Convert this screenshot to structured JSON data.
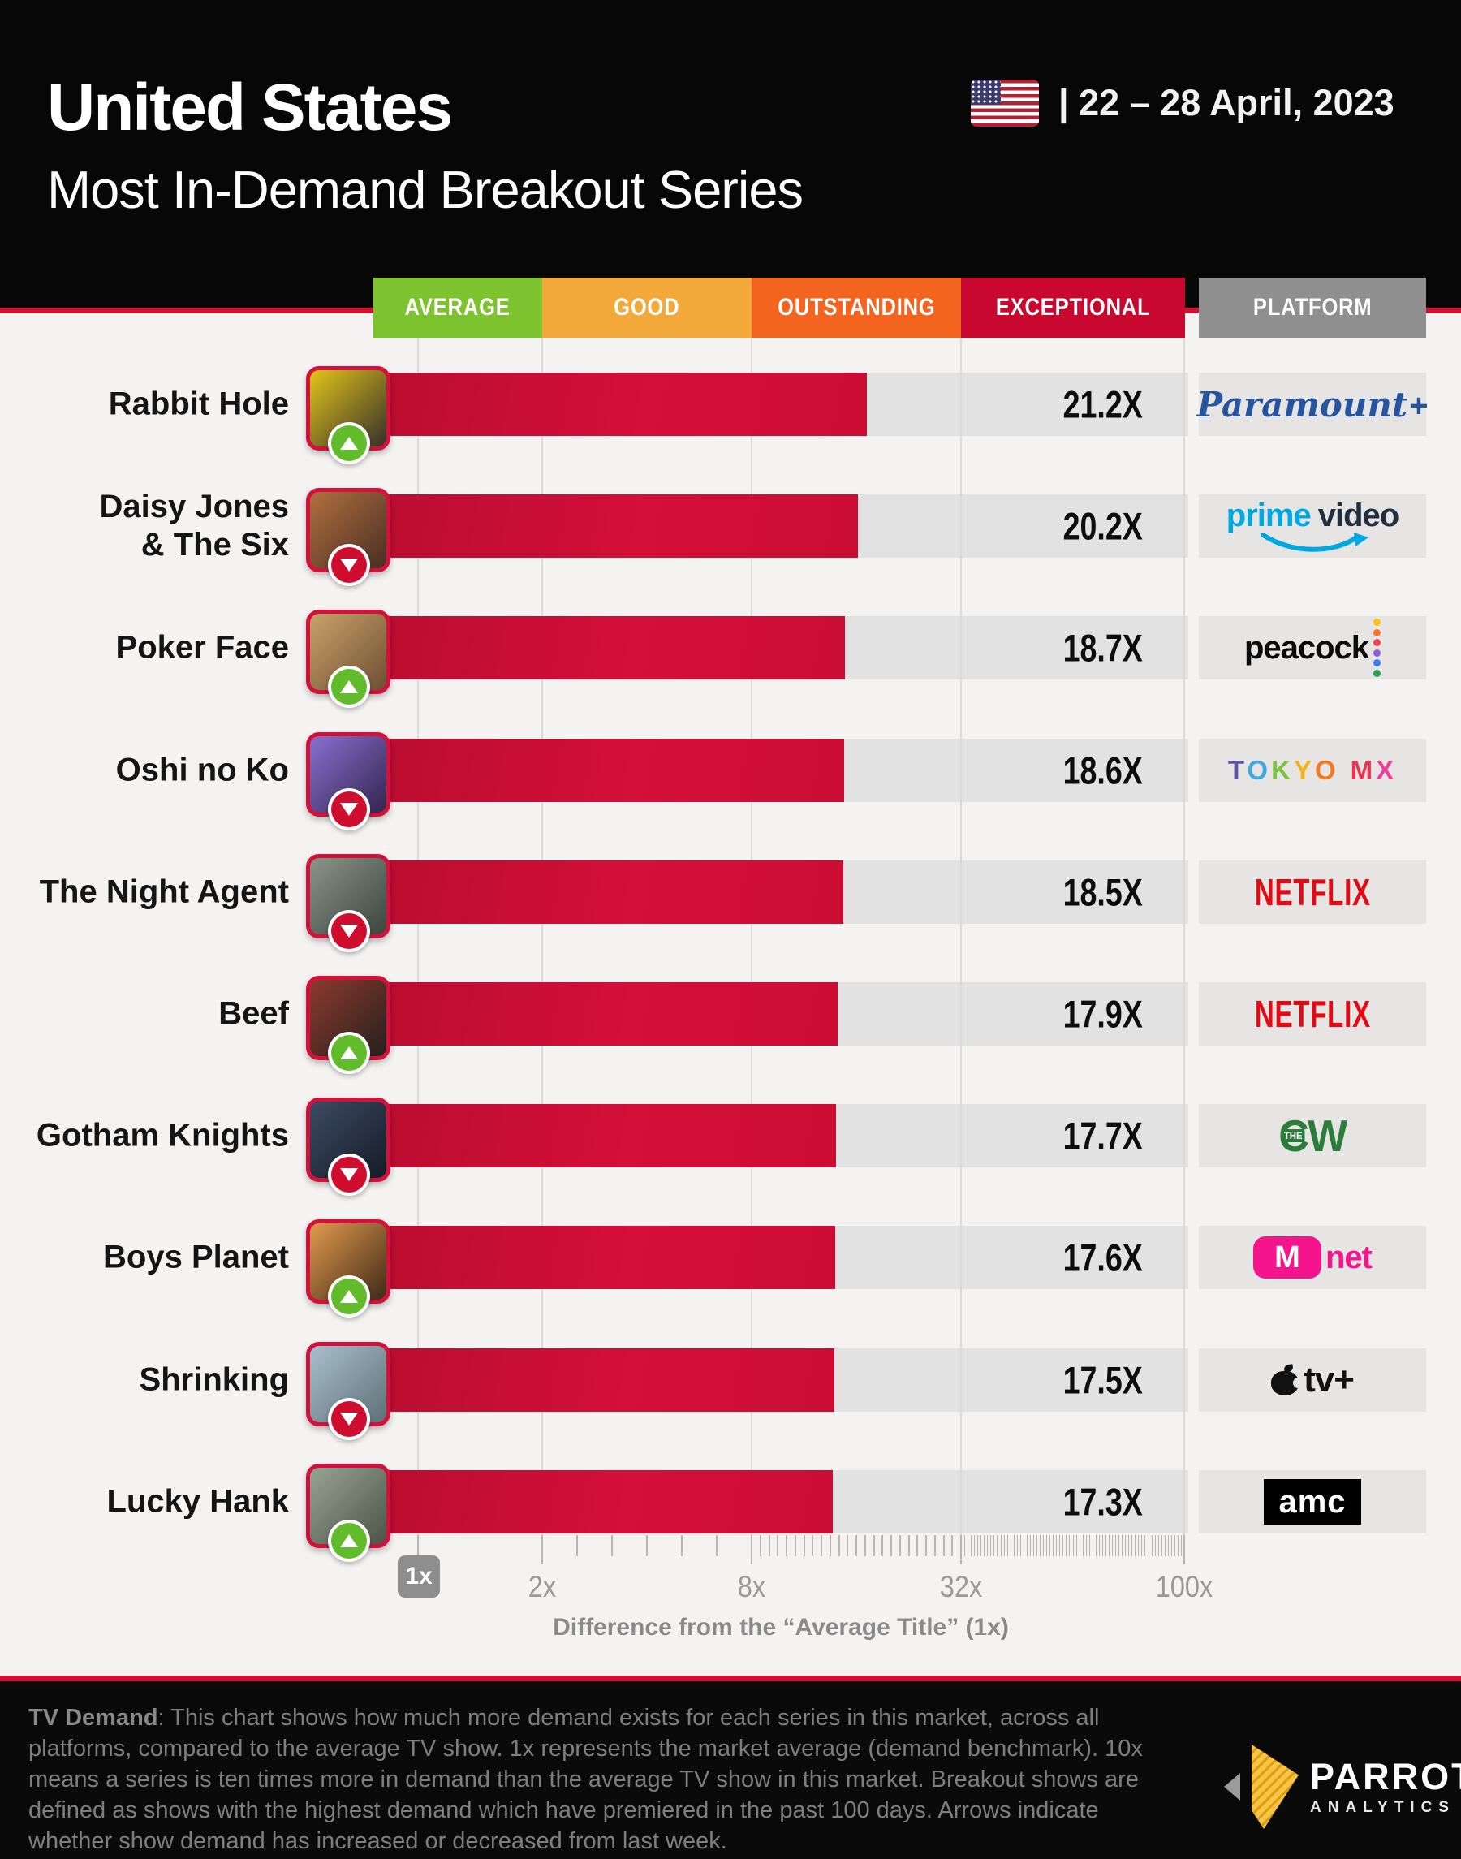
{
  "header": {
    "country": "United States",
    "title": "Most In-Demand Breakout Series",
    "date_range": "|  22 – 28 April, 2023",
    "flag": "us-flag"
  },
  "legend": {
    "bands": [
      {
        "label": "AVERAGE",
        "color": "#7dc22f"
      },
      {
        "label": "GOOD",
        "color": "#f3a83a"
      },
      {
        "label": "OUTSTANDING",
        "color": "#f3641f"
      },
      {
        "label": "EXCEPTIONAL",
        "color": "#c9082f"
      }
    ],
    "platform_header": {
      "label": "PLATFORM",
      "color": "#908f8f"
    }
  },
  "chart_data": {
    "type": "bar",
    "orientation": "horizontal",
    "title": "United States — Most In-Demand Breakout Series, 22–28 April 2023",
    "xlabel": "Difference from the “Average Title” (1x)",
    "categories": [
      "Rabbit Hole",
      "Daisy Jones & The Six",
      "Poker Face",
      "Oshi no Ko",
      "The Night Agent",
      "Beef",
      "Gotham Knights",
      "Boys Planet",
      "Shrinking",
      "Lucky Hank"
    ],
    "values": [
      21.2,
      20.2,
      18.7,
      18.6,
      18.5,
      17.9,
      17.7,
      17.6,
      17.5,
      17.3
    ],
    "value_labels": [
      "21.2X",
      "20.2X",
      "18.7X",
      "18.6X",
      "18.5X",
      "17.9X",
      "17.7X",
      "17.6X",
      "17.5X",
      "17.3X"
    ],
    "trends": [
      "up",
      "down",
      "up",
      "down",
      "down",
      "up",
      "down",
      "up",
      "down",
      "up"
    ],
    "platforms": [
      "Paramount+",
      "prime video",
      "peacock",
      "TOKYO MX",
      "NETFLIX",
      "NETFLIX",
      "The CW",
      "Mnet",
      "Apple TV+",
      "AMC"
    ],
    "axis": {
      "scale": "log-like piecewise",
      "ticks": [
        "1x",
        "2x",
        "8x",
        "32x",
        "100x"
      ],
      "anchor_values": [
        1,
        2,
        8,
        32,
        100
      ],
      "anchor_x": [
        515,
        668,
        926,
        1184,
        1459
      ],
      "caption": "Difference from the “Average Title” (1x)"
    },
    "rows": [
      {
        "rank": 1,
        "title": "Rabbit Hole",
        "value": 21.2,
        "value_label": "21.2X",
        "trend": "up",
        "platform": {
          "type": "paramount-plus",
          "name": "Paramount+",
          "parts": [
            "Paramount",
            "+"
          ]
        },
        "thumb": [
          "#e3c419",
          "#35302a"
        ]
      },
      {
        "rank": 2,
        "title": "Daisy Jones\n& The Six",
        "value": 20.2,
        "value_label": "20.2X",
        "trend": "down",
        "platform": {
          "type": "prime-video",
          "name": "prime video",
          "parts": [
            "prime",
            "video"
          ]
        },
        "thumb": [
          "#b0703f",
          "#4a2e24"
        ]
      },
      {
        "rank": 3,
        "title": "Poker Face",
        "value": 18.7,
        "value_label": "18.7X",
        "trend": "up",
        "platform": {
          "type": "peacock",
          "name": "peacock",
          "parts": [
            "peacock"
          ]
        },
        "thumb": [
          "#c9a269",
          "#6e4f33"
        ]
      },
      {
        "rank": 4,
        "title": "Oshi no Ko",
        "value": 18.6,
        "value_label": "18.6X",
        "trend": "down",
        "platform": {
          "type": "tokyo-mx",
          "name": "TOKYO MX",
          "parts": [
            "TOKYO",
            "MX"
          ]
        },
        "thumb": [
          "#8a6fd0",
          "#33254f"
        ]
      },
      {
        "rank": 5,
        "title": "The Night Agent",
        "value": 18.5,
        "value_label": "18.5X",
        "trend": "down",
        "platform": {
          "type": "netflix",
          "name": "NETFLIX",
          "parts": [
            "NETFLIX"
          ]
        },
        "thumb": [
          "#8b9488",
          "#3c463e"
        ]
      },
      {
        "rank": 6,
        "title": "Beef",
        "value": 17.9,
        "value_label": "17.9X",
        "trend": "up",
        "platform": {
          "type": "netflix",
          "name": "NETFLIX",
          "parts": [
            "NETFLIX"
          ]
        },
        "thumb": [
          "#8c3a2c",
          "#26201f"
        ]
      },
      {
        "rank": 7,
        "title": "Gotham Knights",
        "value": 17.7,
        "value_label": "17.7X",
        "trend": "down",
        "platform": {
          "type": "the-cw",
          "name": "The CW",
          "parts": [
            "THE",
            "CW"
          ]
        },
        "thumb": [
          "#3c4a63",
          "#161c28"
        ]
      },
      {
        "rank": 8,
        "title": "Boys Planet",
        "value": 17.6,
        "value_label": "17.6X",
        "trend": "up",
        "platform": {
          "type": "mnet",
          "name": "Mnet",
          "parts": [
            "M",
            "net"
          ]
        },
        "thumb": [
          "#e09a4d",
          "#3f2a17"
        ]
      },
      {
        "rank": 9,
        "title": "Shrinking",
        "value": 17.5,
        "value_label": "17.5X",
        "trend": "down",
        "platform": {
          "type": "apple-tv",
          "name": "Apple TV+",
          "parts": [
            "tv+"
          ]
        },
        "thumb": [
          "#a8c0cc",
          "#5f7077"
        ]
      },
      {
        "rank": 10,
        "title": "Lucky Hank",
        "value": 17.3,
        "value_label": "17.3X",
        "trend": "up",
        "platform": {
          "type": "amc",
          "name": "AMC",
          "parts": [
            "amc"
          ]
        },
        "thumb": [
          "#97a394",
          "#4c5547"
        ]
      }
    ],
    "logo_colors": {
      "paramount_blue": "#27549f",
      "prime_blue": "#00a8e1",
      "prime_dark": "#232f3e",
      "netflix_red": "#e50914",
      "cw_green": "#2d7d3a",
      "mnet_pink": "#f5148c",
      "peacock_dots": [
        "#fcc40f",
        "#ff7426",
        "#ef4256",
        "#8f5bd8",
        "#3d7bf5",
        "#27a554"
      ],
      "tokyo_letters": [
        "#5a51a5",
        "#3fa9e0",
        "#7dc242",
        "#f0b51d",
        "#f47a20",
        "#e8344e",
        "#ee3f96"
      ]
    },
    "bar_color": "#cc0d33",
    "track_color": "#e3e2e2"
  },
  "footer": {
    "heading": "TV Demand",
    "text": ": This chart shows how much more demand exists for each series in this market, across all platforms, compared to the average TV show. 1x represents the market average (demand benchmark). 10x means a series is ten times more in demand than the average TV show in this market. Breakout shows are defined as shows with the highest demand which have premiered in the past 100 days. Arrows indicate whether show demand has increased or decreased from last week.",
    "brand": {
      "name": "PARROT",
      "sub": "ANALYTICS"
    }
  }
}
